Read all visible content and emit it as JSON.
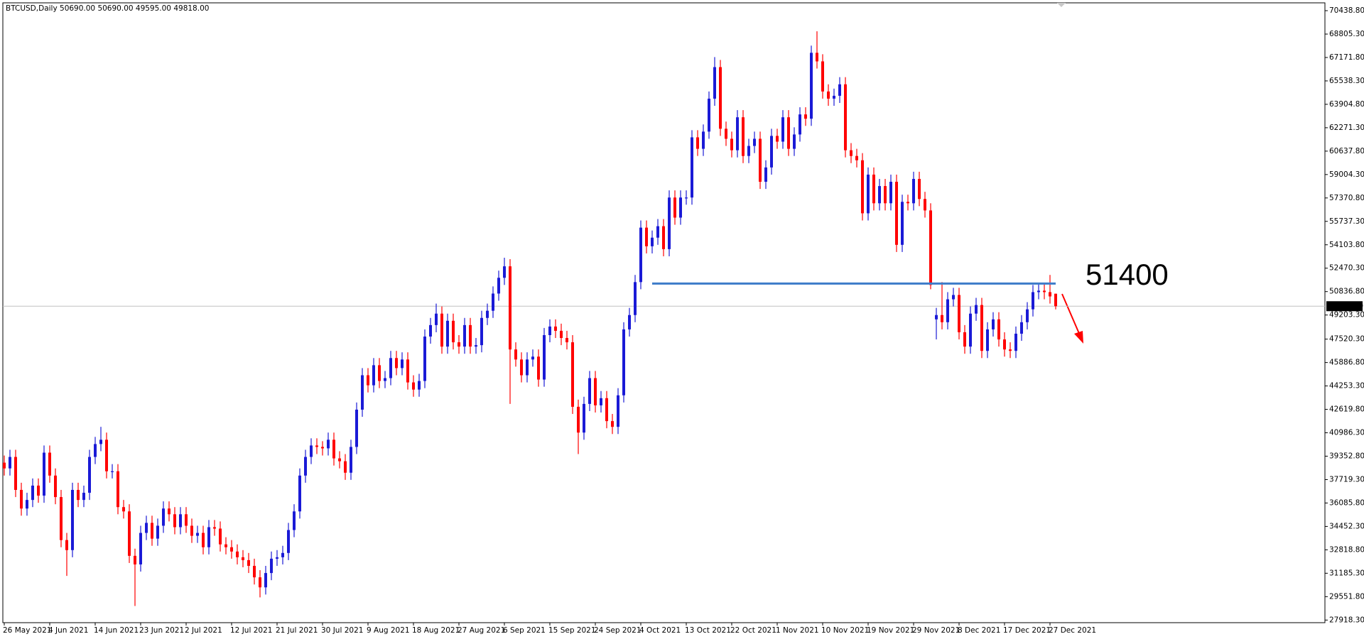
{
  "chart_data": {
    "type": "candlestick",
    "title": "BTCUSD,Daily  50690.00 50690.00 49595.00 49818.00",
    "up_color": "#1a1ad6",
    "down_color": "#ff0000",
    "categories": [
      "26 May 2021",
      null,
      null,
      null,
      null,
      null,
      null,
      null,
      "4 Jun 2021",
      null,
      null,
      null,
      null,
      null,
      null,
      null,
      "14 Jun 2021",
      null,
      null,
      null,
      null,
      null,
      null,
      null,
      "23 Jun 2021",
      null,
      null,
      null,
      null,
      null,
      null,
      null,
      "2 Jul 2021",
      null,
      null,
      null,
      null,
      null,
      null,
      null,
      "12 Jul 2021",
      null,
      null,
      null,
      null,
      null,
      null,
      null,
      "21 Jul 2021",
      null,
      null,
      null,
      null,
      null,
      null,
      null,
      "30 Jul 2021",
      null,
      null,
      null,
      null,
      null,
      null,
      null,
      "9 Aug 2021",
      null,
      null,
      null,
      null,
      null,
      null,
      null,
      "18 Aug 2021",
      null,
      null,
      null,
      null,
      null,
      null,
      null,
      "27 Aug 2021",
      null,
      null,
      null,
      null,
      null,
      null,
      null,
      "6 Sep 2021",
      null,
      null,
      null,
      null,
      null,
      null,
      null,
      "15 Sep 2021",
      null,
      null,
      null,
      null,
      null,
      null,
      null,
      "24 Sep 2021",
      null,
      null,
      null,
      null,
      null,
      null,
      null,
      "4 Oct 2021",
      null,
      null,
      null,
      null,
      null,
      null,
      null,
      "13 Oct 2021",
      null,
      null,
      null,
      null,
      null,
      null,
      null,
      "22 Oct 2021",
      null,
      null,
      null,
      null,
      null,
      null,
      null,
      "1 Nov 2021",
      null,
      null,
      null,
      null,
      null,
      null,
      null,
      "10 Nov 2021",
      null,
      null,
      null,
      null,
      null,
      null,
      null,
      "19 Nov 2021",
      null,
      null,
      null,
      null,
      null,
      null,
      null,
      "29 Nov 2021",
      null,
      null,
      null,
      null,
      null,
      null,
      null,
      "8 Dec 2021",
      null,
      null,
      null,
      null,
      null,
      null,
      null,
      "17 Dec 2021",
      null,
      null,
      null,
      null,
      null,
      null,
      null,
      "27 Dec 2021",
      null
    ],
    "open": [
      38900,
      38500,
      39300,
      37000,
      35700,
      36300,
      37300,
      36600,
      39600,
      38000,
      36500,
      33500,
      32800,
      37000,
      36300,
      36800,
      39300,
      40200,
      40500,
      38300,
      38300,
      35800,
      35500,
      32400,
      31800,
      34000,
      34700,
      33600,
      34500,
      35700,
      35300,
      34400,
      35300,
      34500,
      33800,
      34000,
      33000,
      34400,
      34300,
      33200,
      33000,
      32700,
      32300,
      32100,
      31700,
      30900,
      30200,
      31200,
      32200,
      32300,
      32600,
      34200,
      35500,
      38000,
      39300,
      40100,
      40000,
      39900,
      40500,
      39200,
      39000,
      38200,
      40000,
      42600,
      45000,
      44300,
      45700,
      44600,
      44800,
      46200,
      45500,
      46100,
      44500,
      44000,
      44600,
      47700,
      48500,
      49300,
      47000,
      48800,
      47300,
      47000,
      48500,
      47000,
      47100,
      49000,
      49500,
      50700,
      51800,
      52600,
      46800,
      46100,
      45000,
      46100,
      46300,
      44700,
      47800,
      48400,
      48100,
      47600,
      47300,
      42800,
      41000,
      43000,
      44800,
      42900,
      43400,
      41800,
      41400,
      43600,
      48200,
      49200,
      51500,
      55300,
      54000,
      54600,
      55400,
      53800,
      57400,
      56000,
      57400,
      57400,
      61600,
      60800,
      62000,
      64300,
      66500,
      62200,
      61500,
      60700,
      63000,
      60300,
      61000,
      61500,
      58500,
      59500,
      61700,
      61300,
      63000,
      60800,
      61800,
      63200,
      62900,
      67500,
      66900,
      64800,
      64300,
      64500,
      65300,
      60700,
      60300,
      60000,
      56300,
      59000,
      57000,
      58200,
      57000,
      58500,
      54100,
      57100,
      57000,
      58700,
      57300,
      56500,
      48900,
      49200,
      48700,
      50300,
      50600,
      48000,
      47000,
      49300,
      49900,
      46700,
      48200,
      48900,
      47500,
      46800,
      46700,
      47900,
      48700,
      49600,
      50800,
      50900,
      50800,
      50690
    ],
    "high": [
      39400,
      39800,
      39800,
      37500,
      36800,
      37800,
      37800,
      40100,
      40100,
      38500,
      37000,
      34000,
      37500,
      37500,
      37300,
      39800,
      40700,
      41400,
      41000,
      38800,
      38800,
      36300,
      36000,
      32900,
      34500,
      35200,
      35200,
      35000,
      36200,
      36200,
      35800,
      35800,
      35800,
      35000,
      34500,
      34500,
      34900,
      34900,
      34800,
      33700,
      33500,
      33200,
      32800,
      32600,
      32200,
      31400,
      31700,
      32700,
      32800,
      33100,
      34700,
      36000,
      38500,
      39800,
      40600,
      40600,
      40400,
      41000,
      41000,
      39700,
      39500,
      40500,
      43100,
      45500,
      45500,
      46200,
      46200,
      45300,
      46700,
      46700,
      46600,
      46600,
      45000,
      45100,
      48200,
      49000,
      50000,
      49800,
      49300,
      49300,
      47800,
      49000,
      49000,
      47600,
      49500,
      50000,
      51200,
      52300,
      53200,
      53100,
      47300,
      46600,
      46600,
      46800,
      46800,
      48300,
      48900,
      48900,
      48600,
      48100,
      47800,
      43300,
      43500,
      45300,
      45300,
      43900,
      43900,
      42300,
      44100,
      48700,
      49700,
      52000,
      55800,
      55800,
      55100,
      55900,
      55900,
      57900,
      57900,
      57900,
      57900,
      62100,
      62100,
      62500,
      64800,
      67200,
      67000,
      62700,
      62000,
      63500,
      63500,
      61500,
      62000,
      62000,
      60000,
      62200,
      62200,
      63500,
      63500,
      62300,
      63700,
      63700,
      68000,
      69000,
      67400,
      65300,
      65000,
      65800,
      65800,
      61200,
      60800,
      60500,
      59500,
      59500,
      58700,
      58700,
      59000,
      59000,
      57600,
      57600,
      59200,
      59200,
      57800,
      57000,
      49700,
      51500,
      50800,
      51100,
      51100,
      48500,
      49800,
      50400,
      50400,
      48700,
      49400,
      49400,
      48000,
      47300,
      48400,
      49200,
      50100,
      51300,
      51400,
      51400,
      52000,
      50690
    ],
    "low": [
      38000,
      38000,
      36500,
      35200,
      35200,
      35800,
      36100,
      36100,
      37500,
      36000,
      33000,
      31000,
      32300,
      35800,
      35800,
      36300,
      38800,
      39700,
      37800,
      37800,
      35300,
      35000,
      31900,
      28900,
      31300,
      33500,
      33100,
      33100,
      34000,
      34800,
      33900,
      33900,
      34000,
      33300,
      33300,
      32500,
      32500,
      33800,
      32700,
      32500,
      32200,
      31800,
      31600,
      31200,
      30400,
      29500,
      29700,
      30700,
      31700,
      31800,
      32100,
      33700,
      35000,
      37500,
      38800,
      39500,
      39400,
      39400,
      38700,
      38500,
      37700,
      37700,
      39500,
      42100,
      43800,
      43800,
      44100,
      44100,
      44300,
      45000,
      45000,
      44000,
      43500,
      43500,
      44100,
      47200,
      48000,
      46500,
      46500,
      46800,
      46500,
      46500,
      46500,
      46500,
      46600,
      48500,
      49000,
      50200,
      51300,
      43000,
      45600,
      44500,
      44500,
      45600,
      44200,
      44200,
      47300,
      47600,
      47100,
      46800,
      42300,
      39500,
      40500,
      42500,
      42400,
      42400,
      41300,
      40900,
      40900,
      43100,
      47700,
      48700,
      51000,
      53500,
      53500,
      54100,
      53300,
      53300,
      55500,
      55500,
      56900,
      56900,
      60300,
      60300,
      61500,
      63800,
      61700,
      61000,
      60200,
      60200,
      59800,
      59800,
      60500,
      58000,
      58000,
      59000,
      60800,
      60800,
      60300,
      60300,
      61300,
      62400,
      62400,
      66400,
      64300,
      63800,
      63800,
      64000,
      60200,
      59800,
      59500,
      55800,
      55800,
      56500,
      56500,
      56500,
      56500,
      53600,
      53600,
      56500,
      56500,
      56800,
      56000,
      51000,
      47500,
      48200,
      48200,
      49800,
      47500,
      46500,
      46500,
      48800,
      46200,
      46200,
      47700,
      47000,
      46300,
      46200,
      46200,
      47400,
      48200,
      49100,
      50300,
      50300,
      50000,
      49595
    ],
    "close": [
      38500,
      39300,
      37000,
      35700,
      36300,
      37300,
      36600,
      39600,
      38000,
      36500,
      33500,
      32800,
      37000,
      36300,
      36800,
      39300,
      40200,
      40500,
      38300,
      38300,
      35800,
      35500,
      32400,
      31800,
      34000,
      34700,
      33600,
      34500,
      35700,
      35300,
      34400,
      35300,
      34500,
      33800,
      34000,
      33000,
      34400,
      34300,
      33200,
      33000,
      32700,
      32300,
      32100,
      31700,
      30900,
      30200,
      31200,
      32200,
      32300,
      32600,
      34200,
      35500,
      38000,
      39300,
      40100,
      40000,
      39900,
      40500,
      39200,
      39000,
      38200,
      40000,
      42600,
      45000,
      44300,
      45700,
      44600,
      44800,
      46200,
      45500,
      46100,
      44500,
      44000,
      44600,
      47700,
      48500,
      49300,
      47000,
      48800,
      47300,
      47000,
      48500,
      47000,
      47100,
      49000,
      49500,
      50700,
      51800,
      52600,
      46800,
      46100,
      45000,
      46100,
      46300,
      44700,
      47800,
      48400,
      48100,
      47600,
      47300,
      42800,
      41000,
      43000,
      44800,
      42900,
      43400,
      41800,
      41400,
      43600,
      48200,
      49200,
      51500,
      55300,
      54000,
      54600,
      55400,
      53800,
      57400,
      56000,
      57400,
      57400,
      61600,
      60800,
      62000,
      64300,
      66500,
      62200,
      61500,
      60700,
      63000,
      60300,
      61000,
      61500,
      58500,
      59500,
      61700,
      61300,
      63000,
      60800,
      61800,
      63200,
      62900,
      67500,
      66900,
      64800,
      64300,
      64500,
      65300,
      60700,
      60300,
      60000,
      56300,
      59000,
      57000,
      58200,
      57000,
      58500,
      54100,
      57100,
      57000,
      58700,
      57300,
      56500,
      51300,
      49200,
      48700,
      50300,
      50600,
      48000,
      47000,
      49300,
      49900,
      46700,
      48200,
      48900,
      47500,
      46800,
      46700,
      47900,
      48700,
      49600,
      50800,
      50900,
      50800,
      50500,
      49818
    ],
    "ylim": [
      27736,
      70985
    ],
    "yticks": [
      {
        "value": 27918.3,
        "label": "27918.30"
      },
      {
        "value": 29551.8,
        "label": "29551.80"
      },
      {
        "value": 31185.3,
        "label": "31185.30"
      },
      {
        "value": 32818.8,
        "label": "32818.80"
      },
      {
        "value": 34452.3,
        "label": "34452.30"
      },
      {
        "value": 36085.8,
        "label": "36085.80"
      },
      {
        "value": 37719.3,
        "label": "37719.30"
      },
      {
        "value": 39352.8,
        "label": "39352.80"
      },
      {
        "value": 40986.3,
        "label": "40986.30"
      },
      {
        "value": 42619.8,
        "label": "42619.80"
      },
      {
        "value": 44253.3,
        "label": "44253.30"
      },
      {
        "value": 45886.8,
        "label": "45886.80"
      },
      {
        "value": 47520.3,
        "label": "47520.30"
      },
      {
        "value": 49203.3,
        "label": "49203.30"
      },
      {
        "value": 50836.8,
        "label": "50836.80"
      },
      {
        "value": 52470.3,
        "label": "52470.30"
      },
      {
        "value": 54103.8,
        "label": "54103.80"
      },
      {
        "value": 55737.3,
        "label": "55737.30"
      },
      {
        "value": 57370.8,
        "label": "57370.80"
      },
      {
        "value": 59004.3,
        "label": "59004.30"
      },
      {
        "value": 60637.8,
        "label": "60637.80"
      },
      {
        "value": 62271.3,
        "label": "62271.30"
      },
      {
        "value": 63904.8,
        "label": "63904.80"
      },
      {
        "value": 65538.3,
        "label": "65538.30"
      },
      {
        "value": 67171.8,
        "label": "67171.80"
      },
      {
        "value": 68805.3,
        "label": "68805.30"
      },
      {
        "value": 70438.8,
        "label": "70438.80"
      }
    ],
    "current_price": {
      "value": 49818,
      "label": "49818.00"
    },
    "level": 51400,
    "level_color": "#3d7cc9",
    "annotation_color": "#ff0000"
  }
}
